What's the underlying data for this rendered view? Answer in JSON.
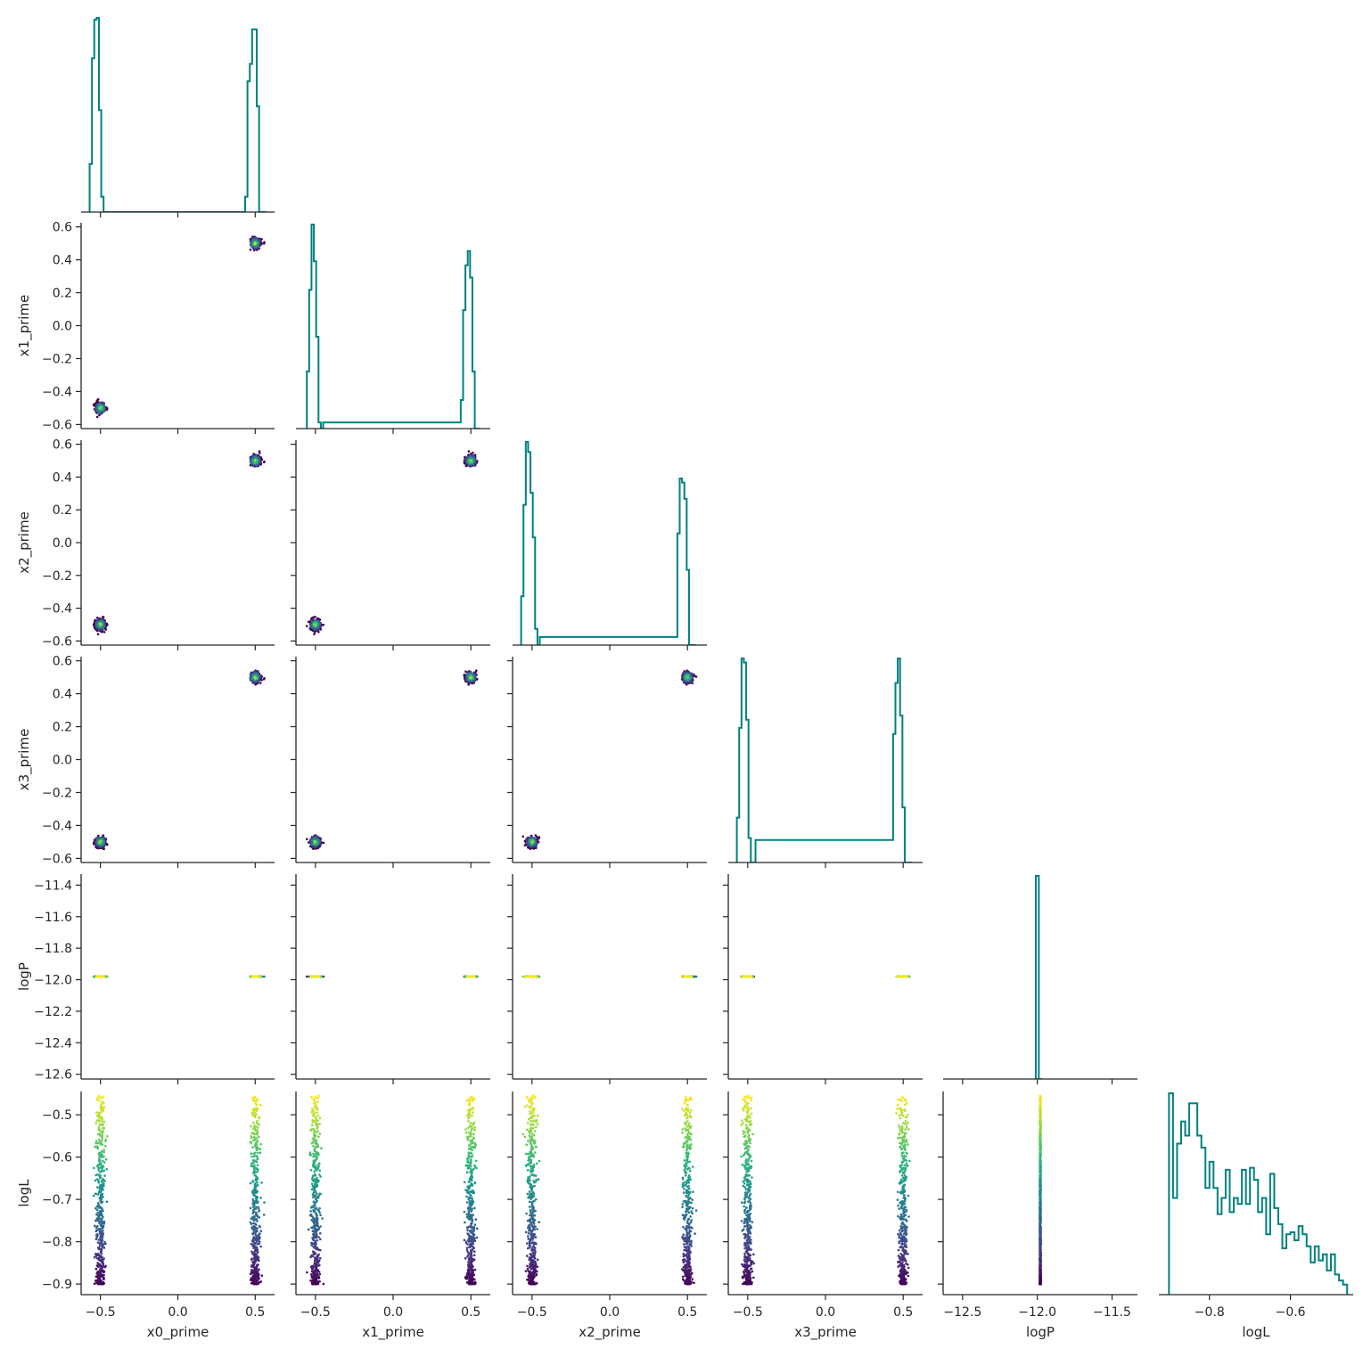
{
  "chart_data": {
    "type": "corner",
    "title": "",
    "variables": [
      "x0_prime",
      "x1_prime",
      "x2_prime",
      "x3_prime",
      "logP",
      "logL"
    ],
    "axis_labels": [
      "x0_prime",
      "x1_prime",
      "x2_prime",
      "x3_prime",
      "logP",
      "logL"
    ],
    "ranges": {
      "x0_prime": [
        -0.625,
        0.625
      ],
      "x1_prime": [
        -0.625,
        0.625
      ],
      "x2_prime": [
        -0.625,
        0.625
      ],
      "x3_prime": [
        -0.625,
        0.625
      ],
      "logP": [
        -12.63,
        -11.33
      ],
      "logL": [
        -0.925,
        -0.445
      ]
    },
    "ticks": {
      "x0_prime": {
        "values": [
          -0.5,
          0.0,
          0.5
        ],
        "labels": [
          "−0.5",
          "0.0",
          "0.5"
        ]
      },
      "x1_prime": {
        "values": [
          -0.5,
          0.0,
          0.5
        ],
        "labels": [
          "−0.5",
          "0.0",
          "0.5"
        ]
      },
      "x2_prime": {
        "values": [
          -0.5,
          0.0,
          0.5
        ],
        "labels": [
          "−0.5",
          "0.0",
          "0.5"
        ]
      },
      "x3_prime": {
        "values": [
          -0.5,
          0.0,
          0.5
        ],
        "labels": [
          "−0.5",
          "0.0",
          "0.5"
        ]
      },
      "logP": {
        "values": [
          -12.5,
          -12.0,
          -11.5
        ],
        "labels": [
          "−12.5",
          "−12.0",
          "−11.5"
        ]
      },
      "logL": {
        "values": [
          -0.8,
          -0.6
        ],
        "labels": [
          "−0.8",
          "−0.6"
        ]
      }
    },
    "y_ticks": {
      "prime": {
        "values": [
          -0.6,
          -0.4,
          -0.2,
          0.0,
          0.2,
          0.4,
          0.6
        ],
        "labels": [
          "−0.6",
          "−0.4",
          "−0.2",
          "0.0",
          "0.2",
          "0.4",
          "0.6"
        ]
      },
      "logP": {
        "values": [
          -12.6,
          -12.4,
          -12.2,
          -12.0,
          -11.8,
          -11.6,
          -11.4
        ],
        "labels": [
          "−12.6",
          "−12.4",
          "−12.2",
          "−12.0",
          "−11.8",
          "−11.6",
          "−11.4"
        ]
      },
      "logL": {
        "values": [
          -0.9,
          -0.8,
          -0.7,
          -0.6,
          -0.5
        ],
        "labels": [
          "−0.9",
          "−0.8",
          "−0.7",
          "−0.6",
          "−0.5"
        ]
      }
    },
    "modes": [
      -0.5,
      0.5
    ],
    "mode_spread": 0.025,
    "logP_value": -11.98,
    "logL_range": [
      -0.9,
      -0.455
    ],
    "scatter_colormap": "viridis",
    "histograms": {
      "x0_prime": {
        "edges": [
          -0.57,
          -0.555,
          -0.54,
          -0.525,
          -0.51,
          -0.495,
          -0.48,
          -0.465,
          -0.45,
          -0.435,
          0.435,
          0.45,
          0.465,
          0.48,
          0.495,
          0.51,
          0.525,
          0.54,
          0.555,
          0.57
        ],
        "counts": [
          25,
          80,
          100,
          101,
          53,
          8,
          0,
          0,
          0,
          0,
          8,
          68,
          77,
          95,
          95,
          55,
          0,
          0,
          0
        ]
      },
      "x1_prime": {
        "edges": [
          -0.555,
          -0.54,
          -0.525,
          -0.51,
          -0.495,
          -0.48,
          -0.465,
          -0.45,
          0.435,
          0.45,
          0.465,
          0.48,
          0.495,
          0.51,
          0.525,
          0.54,
          0.555
        ],
        "counts": [
          28,
          68,
          100,
          82,
          45,
          3,
          0,
          3,
          14,
          58,
          80,
          87,
          74,
          28,
          0,
          0
        ]
      },
      "x2_prime": {
        "edges": [
          -0.57,
          -0.555,
          -0.54,
          -0.525,
          -0.51,
          -0.495,
          -0.48,
          -0.465,
          -0.45,
          0.435,
          0.45,
          0.465,
          0.48,
          0.495,
          0.51,
          0.525,
          0.54,
          0.555
        ],
        "counts": [
          24,
          69,
          100,
          95,
          75,
          53,
          8,
          0,
          4,
          55,
          82,
          80,
          72,
          37,
          0,
          0,
          0
        ]
      },
      "x3_prime": {
        "edges": [
          -0.57,
          -0.555,
          -0.54,
          -0.525,
          -0.51,
          -0.495,
          -0.48,
          -0.465,
          -0.45,
          0.435,
          0.45,
          0.465,
          0.48,
          0.495,
          0.51,
          0.525,
          0.54,
          0.555
        ],
        "counts": [
          22,
          66,
          100,
          98,
          70,
          12,
          0,
          0,
          11,
          63,
          88,
          100,
          72,
          27,
          0,
          0,
          0
        ]
      },
      "logP": {
        "edges": [
          -12.01,
          -11.99,
          -11.97
        ],
        "counts": [
          1,
          0
        ]
      },
      "logL": {
        "edges": [
          -0.9,
          -0.89,
          -0.88,
          -0.87,
          -0.86,
          -0.85,
          -0.84,
          -0.83,
          -0.82,
          -0.81,
          -0.8,
          -0.79,
          -0.78,
          -0.77,
          -0.76,
          -0.75,
          -0.74,
          -0.73,
          -0.72,
          -0.71,
          -0.7,
          -0.69,
          -0.68,
          -0.67,
          -0.66,
          -0.65,
          -0.64,
          -0.63,
          -0.62,
          -0.61,
          -0.6,
          -0.59,
          -0.58,
          -0.57,
          -0.56,
          -0.55,
          -0.54,
          -0.53,
          -0.52,
          -0.51,
          -0.5,
          -0.49,
          -0.48,
          -0.47,
          -0.46
        ],
        "counts": [
          100,
          48,
          75,
          86,
          79,
          95,
          95,
          79,
          73,
          53,
          66,
          53,
          40,
          48,
          62,
          41,
          48,
          45,
          62,
          45,
          63,
          57,
          41,
          48,
          30,
          60,
          43,
          35,
          23,
          30,
          31,
          27,
          34,
          30,
          24,
          16,
          24,
          17,
          20,
          12,
          20,
          10,
          7,
          5
        ]
      }
    },
    "hist_color": "#008080"
  }
}
